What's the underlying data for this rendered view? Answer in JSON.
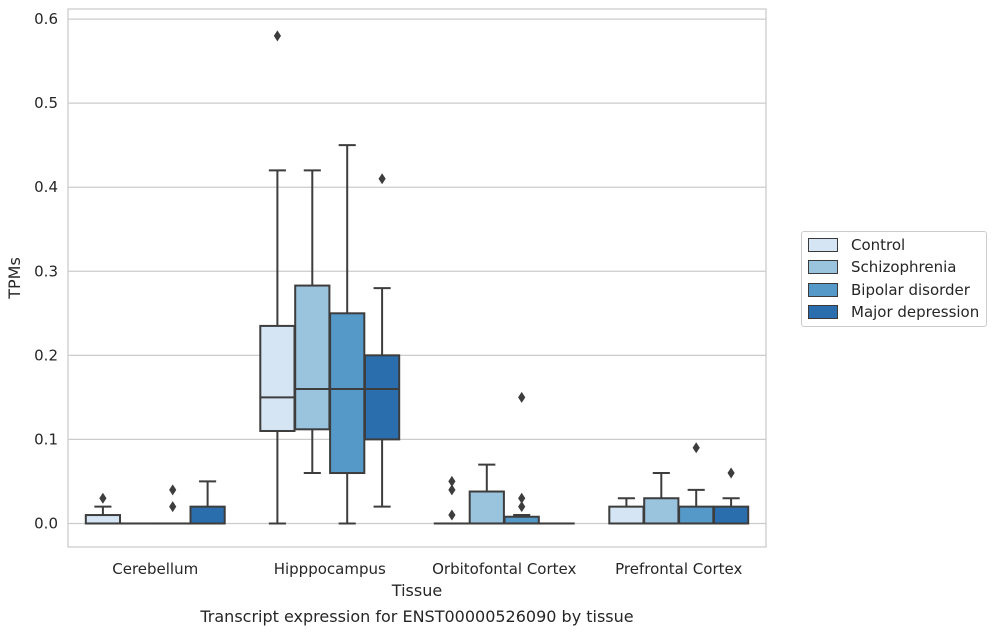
{
  "chart_data": {
    "type": "box",
    "title": "Transcript expression for ENST00000526090 by tissue",
    "xlabel": "Tissue",
    "ylabel": "TPMs",
    "categories": [
      "Cerebellum",
      "Hipppocampus",
      "Orbitofontal Cortex",
      "Prefrontal Cortex"
    ],
    "ylim": [
      -0.028,
      0.612
    ],
    "yticks": [
      "0.0",
      "0.1",
      "0.2",
      "0.3",
      "0.4",
      "0.5",
      "0.6"
    ],
    "grid": "horizontal",
    "legend_position": "right",
    "series": [
      {
        "name": "Control",
        "color": "#d6e5f3",
        "boxes": [
          {
            "whislo": 0.0,
            "q1": 0.0,
            "med": 0.0,
            "q3": 0.01,
            "whishi": 0.02,
            "fliers": [
              0.03
            ]
          },
          {
            "whislo": 0.0,
            "q1": 0.11,
            "med": 0.15,
            "q3": 0.235,
            "whishi": 0.42,
            "fliers": [
              0.58
            ]
          },
          {
            "whislo": 0.0,
            "q1": 0.0,
            "med": 0.0,
            "q3": 0.0,
            "whishi": 0.0,
            "fliers": [
              0.01,
              0.04,
              0.05
            ]
          },
          {
            "whislo": 0.0,
            "q1": 0.0,
            "med": 0.0,
            "q3": 0.02,
            "whishi": 0.03,
            "fliers": []
          }
        ]
      },
      {
        "name": "Schizophrenia",
        "color": "#9ac3de",
        "boxes": [
          {
            "whislo": 0.0,
            "q1": 0.0,
            "med": 0.0,
            "q3": 0.0,
            "whishi": 0.0,
            "fliers": []
          },
          {
            "whislo": 0.06,
            "q1": 0.112,
            "med": 0.16,
            "q3": 0.283,
            "whishi": 0.42,
            "fliers": []
          },
          {
            "whislo": 0.0,
            "q1": 0.0,
            "med": 0.0,
            "q3": 0.038,
            "whishi": 0.07,
            "fliers": []
          },
          {
            "whislo": 0.0,
            "q1": 0.0,
            "med": 0.0,
            "q3": 0.03,
            "whishi": 0.06,
            "fliers": []
          }
        ]
      },
      {
        "name": "Bipolar disorder",
        "color": "#5599c8",
        "boxes": [
          {
            "whislo": 0.0,
            "q1": 0.0,
            "med": 0.0,
            "q3": 0.0,
            "whishi": 0.0,
            "fliers": [
              0.02,
              0.04
            ]
          },
          {
            "whislo": 0.0,
            "q1": 0.06,
            "med": 0.16,
            "q3": 0.25,
            "whishi": 0.45,
            "fliers": []
          },
          {
            "whislo": 0.0,
            "q1": 0.0,
            "med": 0.0,
            "q3": 0.008,
            "whishi": 0.01,
            "fliers": [
              0.02,
              0.03,
              0.15
            ]
          },
          {
            "whislo": 0.0,
            "q1": 0.0,
            "med": 0.0,
            "q3": 0.02,
            "whishi": 0.04,
            "fliers": [
              0.09
            ]
          }
        ]
      },
      {
        "name": "Major depression",
        "color": "#2b6ead",
        "boxes": [
          {
            "whislo": 0.0,
            "q1": 0.0,
            "med": 0.0,
            "q3": 0.02,
            "whishi": 0.05,
            "fliers": []
          },
          {
            "whislo": 0.02,
            "q1": 0.1,
            "med": 0.16,
            "q3": 0.2,
            "whishi": 0.28,
            "fliers": [
              0.41
            ]
          },
          {
            "whislo": 0.0,
            "q1": 0.0,
            "med": 0.0,
            "q3": 0.0,
            "whishi": 0.0,
            "fliers": []
          },
          {
            "whislo": 0.0,
            "q1": 0.0,
            "med": 0.0,
            "q3": 0.02,
            "whishi": 0.03,
            "fliers": [
              0.06
            ]
          }
        ]
      }
    ]
  }
}
